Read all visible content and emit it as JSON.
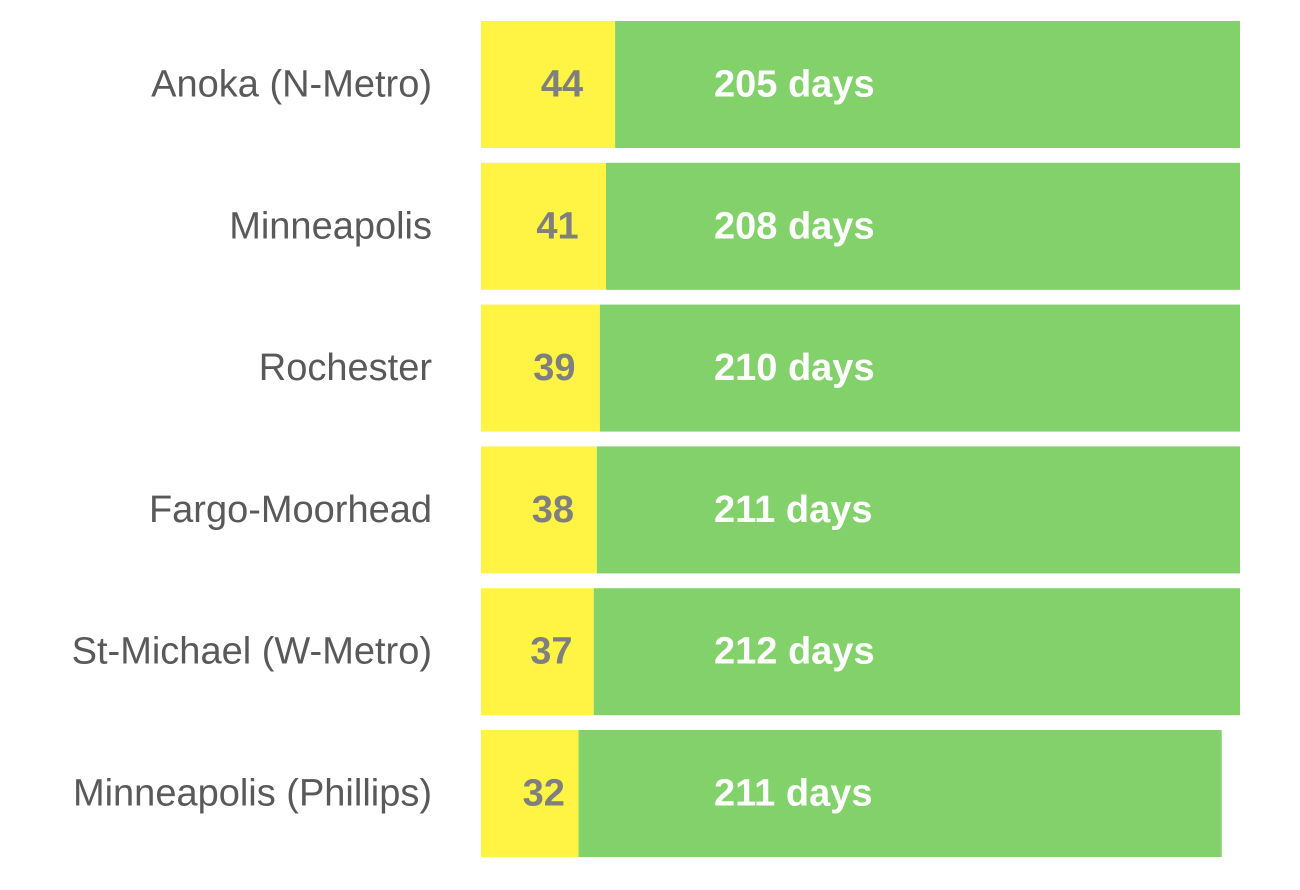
{
  "chart_data": {
    "type": "bar",
    "orientation": "horizontal",
    "stacked": true,
    "grid": false,
    "legend": "none",
    "categories": [
      "Anoka (N-Metro)",
      "Minneapolis",
      "Rochester",
      "Fargo-Moorhead",
      "St-Michael (W-Metro)",
      "Minneapolis (Phillips)"
    ],
    "series": [
      {
        "color": "#FFF343",
        "values": [
          44,
          41,
          39,
          38,
          37,
          32
        ],
        "labels": [
          "44",
          "41",
          "39",
          "38",
          "37",
          "32"
        ]
      },
      {
        "color": "#82D16A",
        "values": [
          205,
          208,
          210,
          211,
          212,
          211
        ],
        "labels": [
          "205 days",
          "208 days",
          "210 days",
          "211 days",
          "212 days",
          "211 days"
        ]
      }
    ],
    "xlim": [
      0,
      249
    ]
  }
}
